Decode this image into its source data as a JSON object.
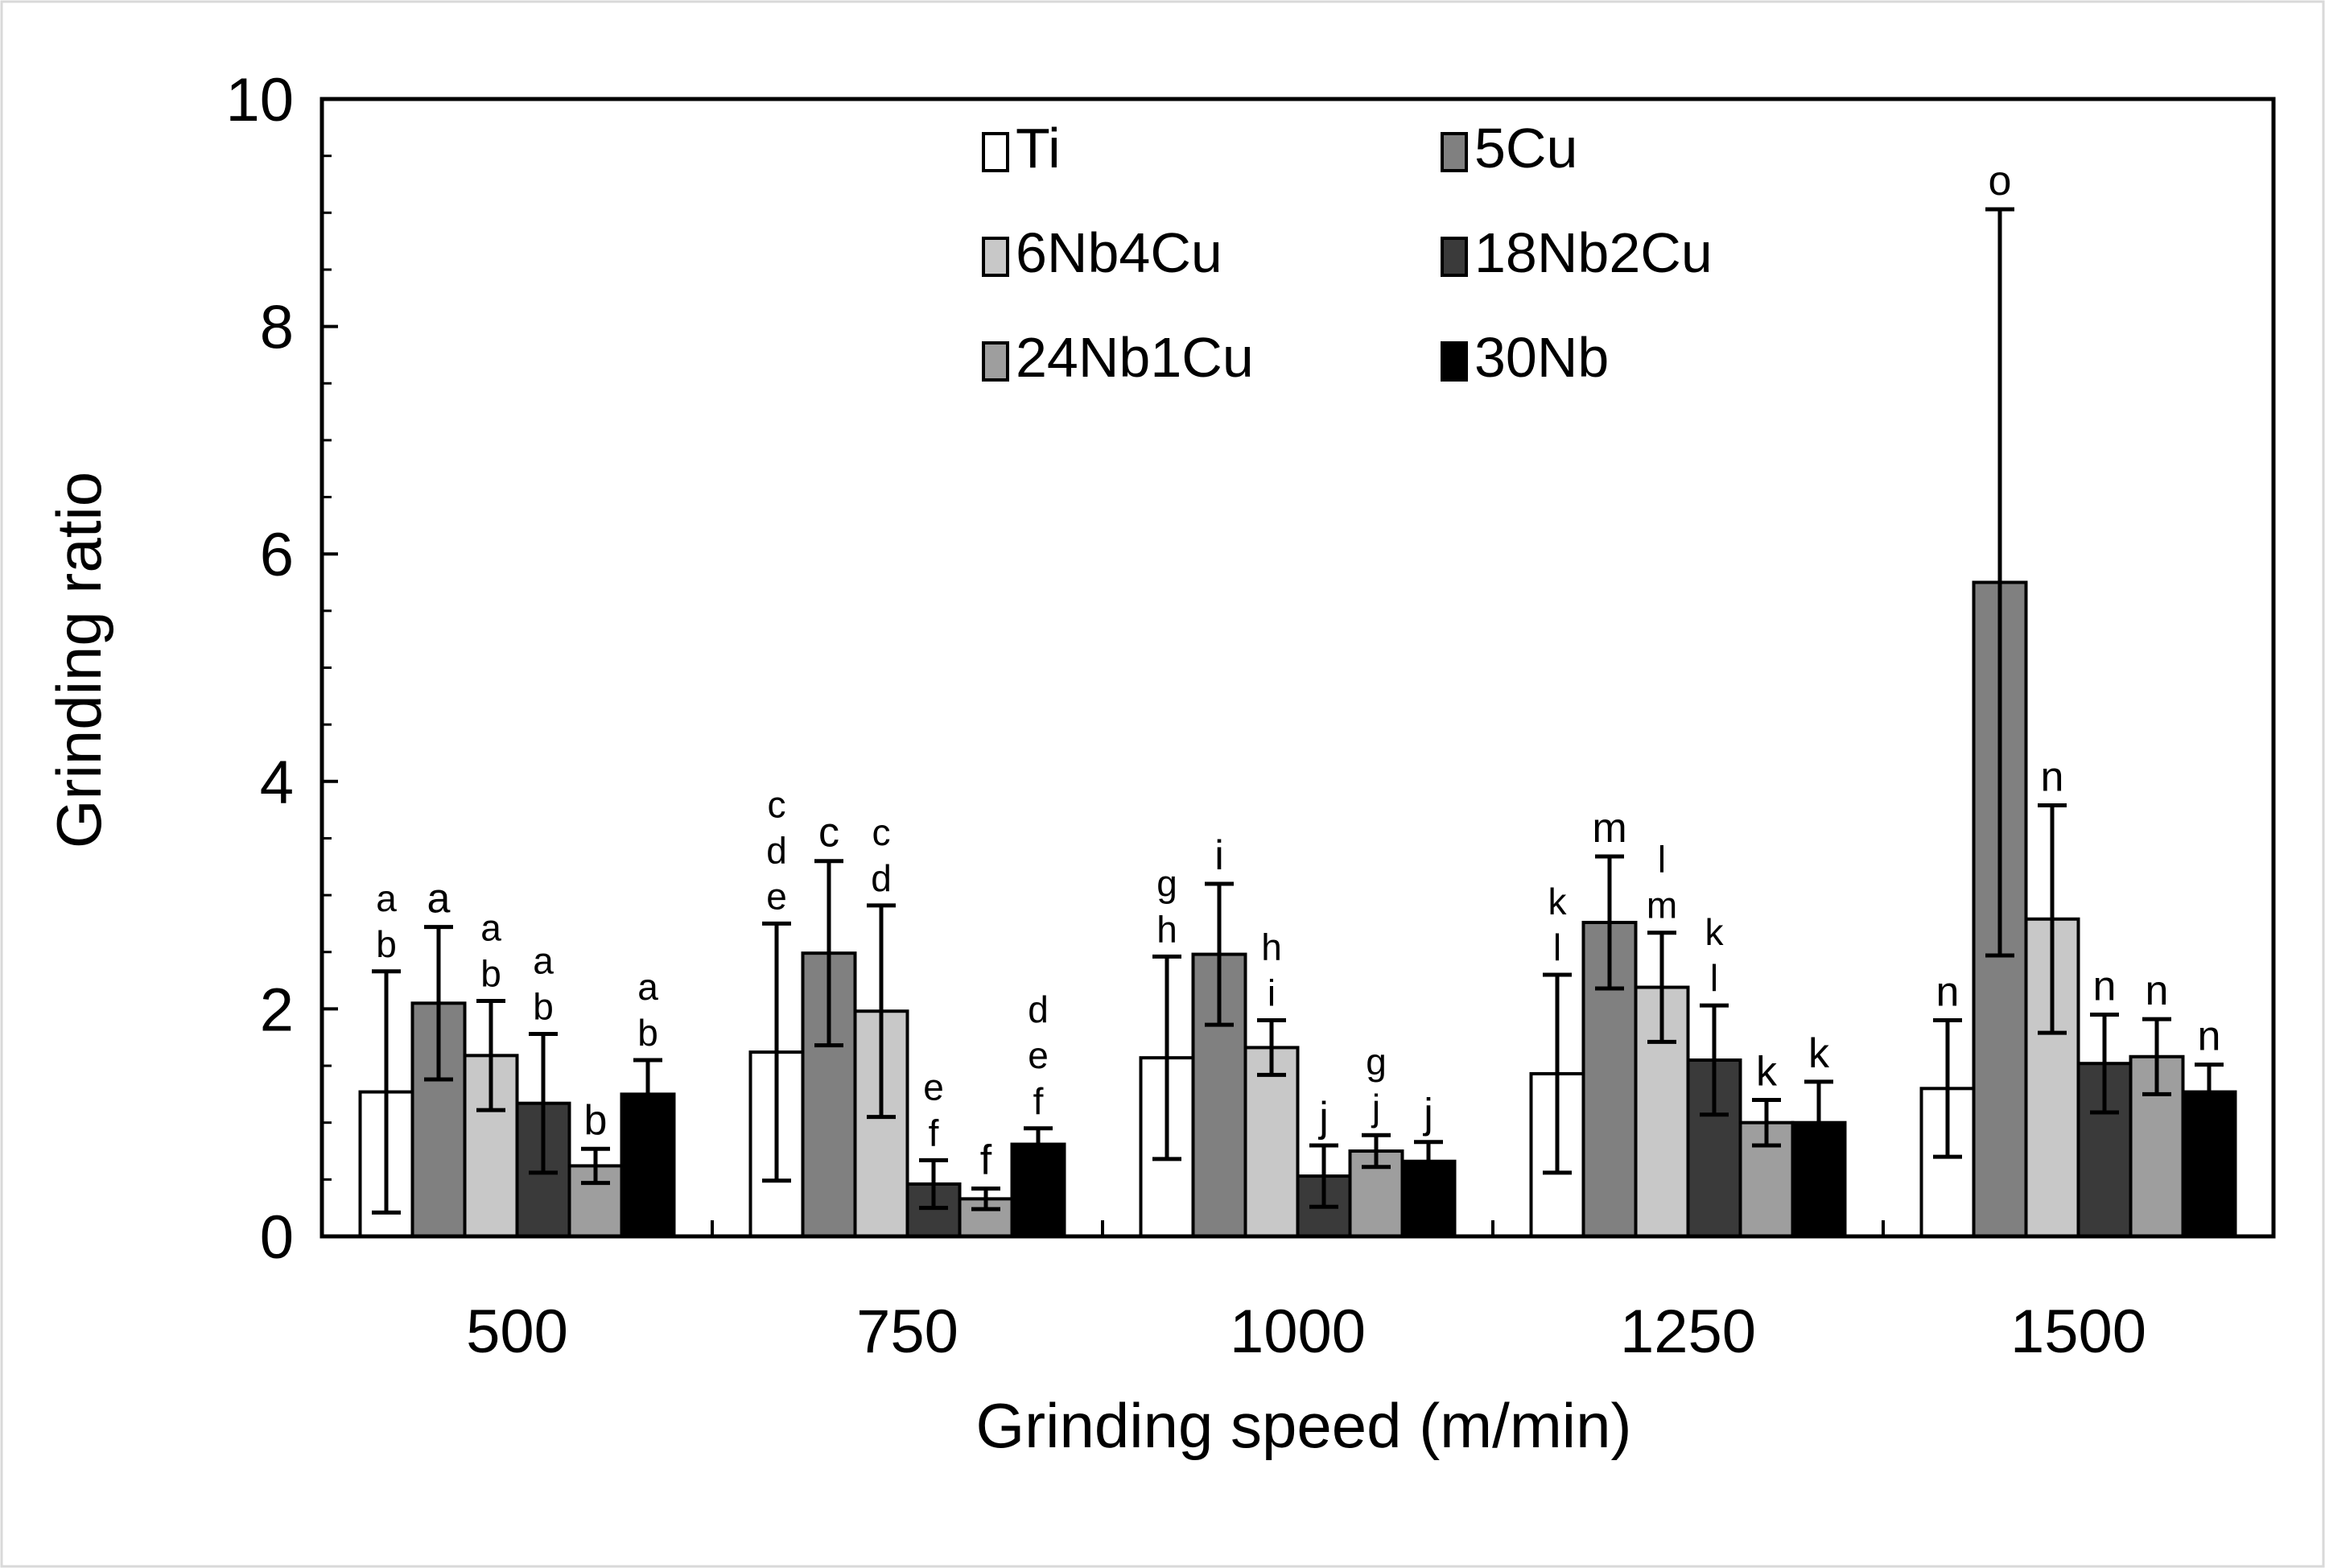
{
  "chart_data": {
    "type": "bar",
    "title": "",
    "xlabel": "Grinding speed (m/min)",
    "ylabel": "Grinding ratio",
    "ylim": [
      0,
      10
    ],
    "yticks": [
      0,
      2,
      4,
      6,
      8,
      10
    ],
    "grid": false,
    "legend_position": "top-center",
    "categories": [
      "500",
      "750",
      "1000",
      "1250",
      "1500"
    ],
    "series": [
      {
        "name": "Ti",
        "color": "#ffffff",
        "values": [
          1.27,
          1.62,
          1.57,
          1.43,
          1.3
        ],
        "errors": [
          1.06,
          1.13,
          0.89,
          0.87,
          0.6
        ],
        "letters": [
          "a\nb",
          "c\nd\ne",
          "g\nh",
          "k\nl",
          "n"
        ]
      },
      {
        "name": "5Cu",
        "color": "#808080",
        "values": [
          2.05,
          2.49,
          2.48,
          2.76,
          5.75
        ],
        "errors": [
          0.67,
          0.81,
          0.62,
          0.58,
          3.28
        ],
        "letters": [
          "a",
          "c",
          "i",
          "m",
          "o"
        ]
      },
      {
        "name": "6Nb4Cu",
        "color": "#c8c8c8",
        "values": [
          1.59,
          1.98,
          1.66,
          2.19,
          2.79
        ],
        "errors": [
          0.48,
          0.93,
          0.24,
          0.48,
          1.0
        ],
        "letters": [
          "a\nb",
          "c\nd",
          "h\ni",
          "l\nm",
          "n"
        ]
      },
      {
        "name": "18Nb2Cu",
        "color": "#3a3a3a",
        "values": [
          1.17,
          0.46,
          0.53,
          1.55,
          1.52
        ],
        "errors": [
          0.61,
          0.21,
          0.27,
          0.48,
          0.43
        ],
        "letters": [
          "a\nb",
          "e\nf",
          "j",
          "k\nl",
          "n"
        ]
      },
      {
        "name": "24Nb1Cu",
        "color": "#9e9e9e",
        "values": [
          0.62,
          0.33,
          0.75,
          1.0,
          1.58
        ],
        "errors": [
          0.15,
          0.09,
          0.14,
          0.2,
          0.33
        ],
        "letters": [
          "b",
          "f",
          "g\nj",
          "k",
          "n"
        ]
      },
      {
        "name": "30Nb",
        "color": "#000000",
        "values": [
          1.25,
          0.81,
          0.66,
          1.0,
          1.27
        ],
        "errors": [
          0.3,
          0.14,
          0.17,
          0.36,
          0.24
        ],
        "letters": [
          "a\nb",
          "d\ne\nf",
          "j",
          "k",
          "n"
        ]
      }
    ]
  }
}
